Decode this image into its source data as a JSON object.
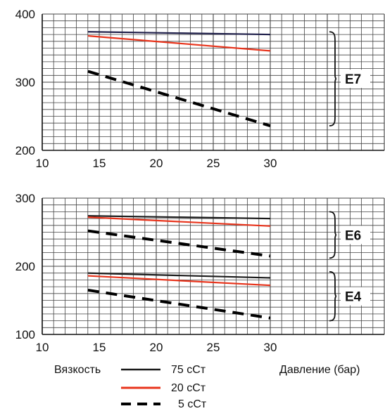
{
  "colors": {
    "c75": "#1a1a1a",
    "c75_top": "#1f1f4a",
    "c20": "#e8341c",
    "c5": "#000000",
    "grid": "#444444"
  },
  "chart_data": [
    {
      "type": "line",
      "xlim": [
        10,
        40
      ],
      "ylim": [
        200,
        400
      ],
      "x_ticks": [
        "10",
        "15",
        "20",
        "25",
        "30"
      ],
      "y_ticks": [
        "200",
        "300",
        "400"
      ],
      "grid": true,
      "series": [
        {
          "name": "75 сСт",
          "style": "solid",
          "color": "#1f1f4a",
          "x": [
            14,
            30
          ],
          "y": [
            374,
            370
          ]
        },
        {
          "name": "20 сСт",
          "style": "solid",
          "color": "#e8341c",
          "x": [
            14,
            30
          ],
          "y": [
            368,
            346
          ]
        },
        {
          "name": "5 сСт",
          "style": "dashed",
          "color": "#000000",
          "x": [
            14,
            30
          ],
          "y": [
            316,
            236
          ]
        }
      ],
      "groups": [
        {
          "label": "E7",
          "ymin": 236,
          "ymax": 374
        }
      ]
    },
    {
      "type": "line",
      "xlim": [
        10,
        40
      ],
      "ylim": [
        100,
        300
      ],
      "x_ticks": [
        "10",
        "15",
        "20",
        "25",
        "30"
      ],
      "y_ticks": [
        "100",
        "200",
        "300"
      ],
      "grid": true,
      "series": [
        {
          "name": "75 сСт",
          "style": "solid",
          "color": "#1a1a1a",
          "x": [
            14,
            30
          ],
          "y": [
            274,
            270
          ]
        },
        {
          "name": "20 сСт",
          "style": "solid",
          "color": "#e8341c",
          "x": [
            14,
            30
          ],
          "y": [
            272,
            259
          ]
        },
        {
          "name": "5 сСт",
          "style": "dashed",
          "color": "#000000",
          "x": [
            14,
            30
          ],
          "y": [
            252,
            215
          ]
        },
        {
          "name": "75 сСт",
          "style": "solid",
          "color": "#1a1a1a",
          "x": [
            14,
            30
          ],
          "y": [
            190,
            183
          ]
        },
        {
          "name": "20 сСт",
          "style": "solid",
          "color": "#e8341c",
          "x": [
            14,
            30
          ],
          "y": [
            186,
            172
          ]
        },
        {
          "name": "5 сСт",
          "style": "dashed",
          "color": "#000000",
          "x": [
            14,
            30
          ],
          "y": [
            165,
            124
          ]
        }
      ],
      "groups": [
        {
          "label": "E6",
          "ymin": 212,
          "ymax": 280
        },
        {
          "label": "E4",
          "ymin": 120,
          "ymax": 192
        }
      ]
    }
  ],
  "legend": {
    "title": "Вязкость",
    "items": [
      {
        "label": "75  сСт",
        "style": "solid",
        "color": "#1a1a1a"
      },
      {
        "label": "20  сСт",
        "style": "solid",
        "color": "#e8341c"
      },
      {
        "label": "5  сСт",
        "style": "dashed",
        "color": "#000000"
      }
    ]
  },
  "xlabel": "Давление (бар)"
}
